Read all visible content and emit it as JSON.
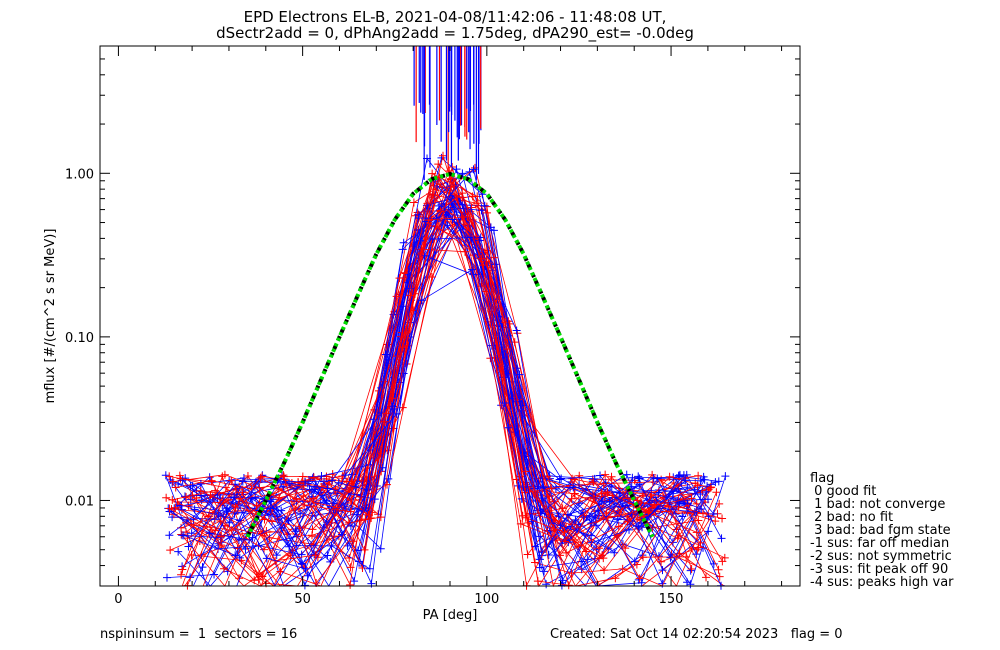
{
  "chart_data": {
    "type": "line",
    "title": "EPD Electrons EL-B, 2021-04-08/11:42:06 - 11:48:08 UT,",
    "subtitle": "dSectr2add = 0, dPhAng2add = 1.75deg, dPA290_est=  -0.0deg",
    "xlabel": "PA [deg]",
    "ylabel": "mflux [#/(cm^2 s sr MeV)]",
    "xlim": [
      -5,
      185
    ],
    "ylim": [
      0.003,
      6
    ],
    "yscale": "log",
    "xticks": [
      "0",
      "50",
      "100",
      "150"
    ],
    "yticks": [
      "1.00",
      "0.10",
      "0.01"
    ],
    "series_colors": {
      "spin_a": "#0000ff",
      "spin_b": "#ff0000",
      "fit": "#00dd00",
      "fit_outline": "#000000"
    },
    "fit_curve": {
      "x": [
        35,
        40,
        45,
        50,
        55,
        60,
        65,
        70,
        75,
        80,
        85,
        90,
        95,
        100,
        105,
        110,
        115,
        120,
        125,
        130,
        135,
        140,
        145
      ],
      "y": [
        0.006,
        0.01,
        0.017,
        0.03,
        0.055,
        0.1,
        0.18,
        0.32,
        0.52,
        0.75,
        0.92,
        0.99,
        0.92,
        0.75,
        0.52,
        0.32,
        0.18,
        0.1,
        0.055,
        0.03,
        0.017,
        0.01,
        0.006
      ]
    },
    "legend": {
      "title": "flag",
      "entries": [
        " 0 good fit",
        " 1 bad: not converge",
        " 2 bad: no fit",
        " 3 bad: bad fgm state",
        "-1 sus: far off median",
        "-2 sus: not symmetric",
        "-3 sus: fit peak off 90",
        "-4 sus: peaks high var"
      ]
    }
  },
  "footer": {
    "left": "nspininsum =  1  sectors = 16",
    "right": "Created: Sat Oct 14 02:20:54 2023   flag = 0"
  }
}
